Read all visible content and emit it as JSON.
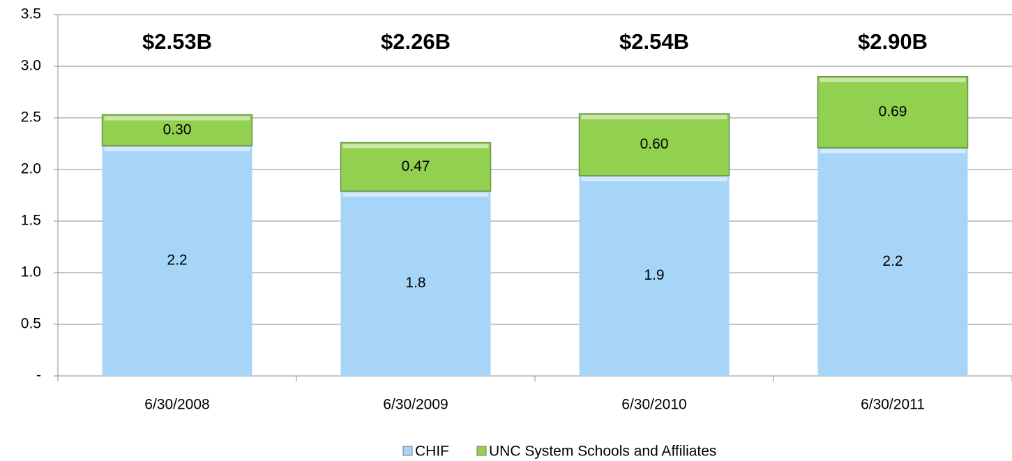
{
  "chart_data": {
    "type": "stacked_bar",
    "categories": [
      "6/30/2008",
      "6/30/2009",
      "6/30/2010",
      "6/30/2011"
    ],
    "series": [
      {
        "name": "CHIF",
        "color": "#a6d5f7",
        "values": [
          2.23,
          1.79,
          1.94,
          2.21
        ],
        "value_labels": [
          "2.2",
          "1.8",
          "1.9",
          "2.2"
        ]
      },
      {
        "name": "UNC System Schools and Affiliates",
        "color": "#92d050",
        "values": [
          0.3,
          0.47,
          0.6,
          0.69
        ],
        "value_labels": [
          "0.30",
          "0.47",
          "0.60",
          "0.69"
        ]
      }
    ],
    "annotations": [
      "$2.53B",
      "$2.26B",
      "$2.54B",
      "$2.90B"
    ],
    "ylim": [
      0,
      3.5
    ],
    "yticks": [
      {
        "value": 0,
        "label": "-"
      },
      0.5,
      {
        "value": 1,
        "label": "1.0"
      },
      1.5,
      {
        "value": 2,
        "label": "2.0"
      },
      2.5,
      {
        "value": 3,
        "label": "3.0"
      },
      3.5
    ],
    "grid": true,
    "legend": "bottom"
  }
}
